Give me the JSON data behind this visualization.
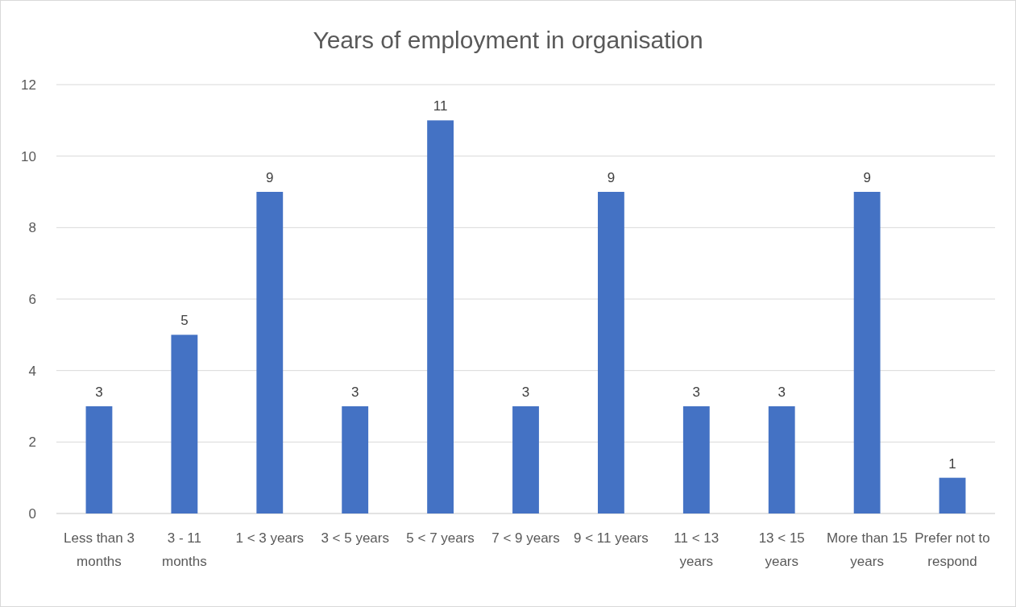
{
  "chart_data": {
    "type": "bar",
    "title": "Years of employment in organisation",
    "categories": [
      "Less than 3 months",
      "3 - 11 months",
      "1 < 3 years",
      "3 < 5 years",
      "5 < 7 years",
      "7 < 9 years",
      "9 < 11 years",
      "11 < 13 years",
      "13 < 15 years",
      "More than 15 years",
      "Prefer not to respond"
    ],
    "values": [
      3,
      5,
      9,
      3,
      11,
      3,
      9,
      3,
      3,
      9,
      1
    ],
    "color": "#4472c4",
    "ylim": [
      0,
      12
    ],
    "yticks": [
      0,
      2,
      4,
      6,
      8,
      10,
      12
    ],
    "grid": "y",
    "data_labels": true
  }
}
